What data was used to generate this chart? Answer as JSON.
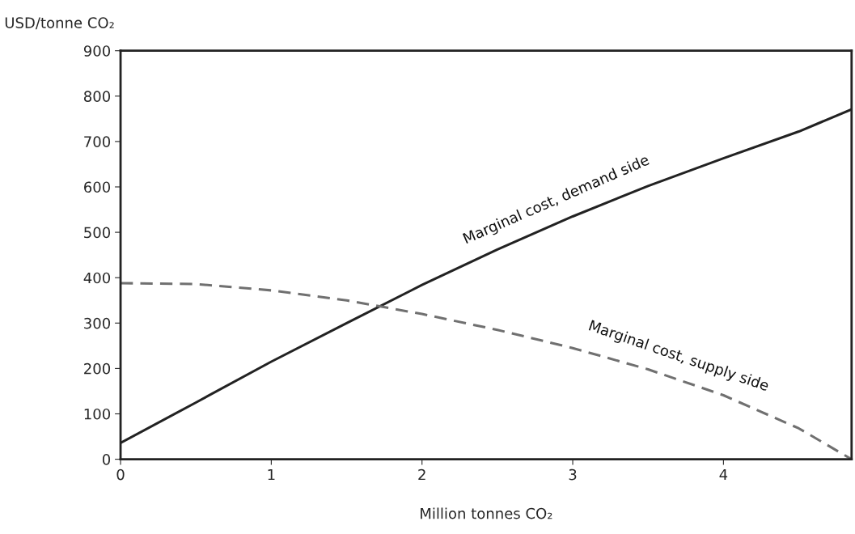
{
  "chart_data": {
    "type": "line",
    "xlabel": "Million tonnes CO₂",
    "ylabel": "USD/tonne CO₂",
    "x": [
      0,
      0.5,
      1,
      1.5,
      2,
      2.5,
      3,
      3.5,
      4,
      4.5,
      4.85
    ],
    "series": [
      {
        "name": "Marginal cost, demand side",
        "color": "#222222",
        "line_style": "solid",
        "values": [
          36,
          125,
          215,
          300,
          384,
          462,
          535,
          602,
          663,
          722,
          771
        ]
      },
      {
        "name": "Marginal cost, supply side",
        "color": "#707070",
        "line_style": "dashed",
        "values": [
          388,
          386,
          372,
          350,
          320,
          285,
          245,
          198,
          141,
          68,
          0
        ]
      }
    ],
    "xlim": [
      0,
      4.85
    ],
    "xticks": [
      0,
      1,
      2,
      3,
      4
    ],
    "ylim": [
      0,
      900
    ],
    "yticks": [
      0,
      100,
      200,
      300,
      400,
      500,
      600,
      700,
      800,
      900
    ],
    "grid": false,
    "legend": false,
    "marker": "none"
  }
}
